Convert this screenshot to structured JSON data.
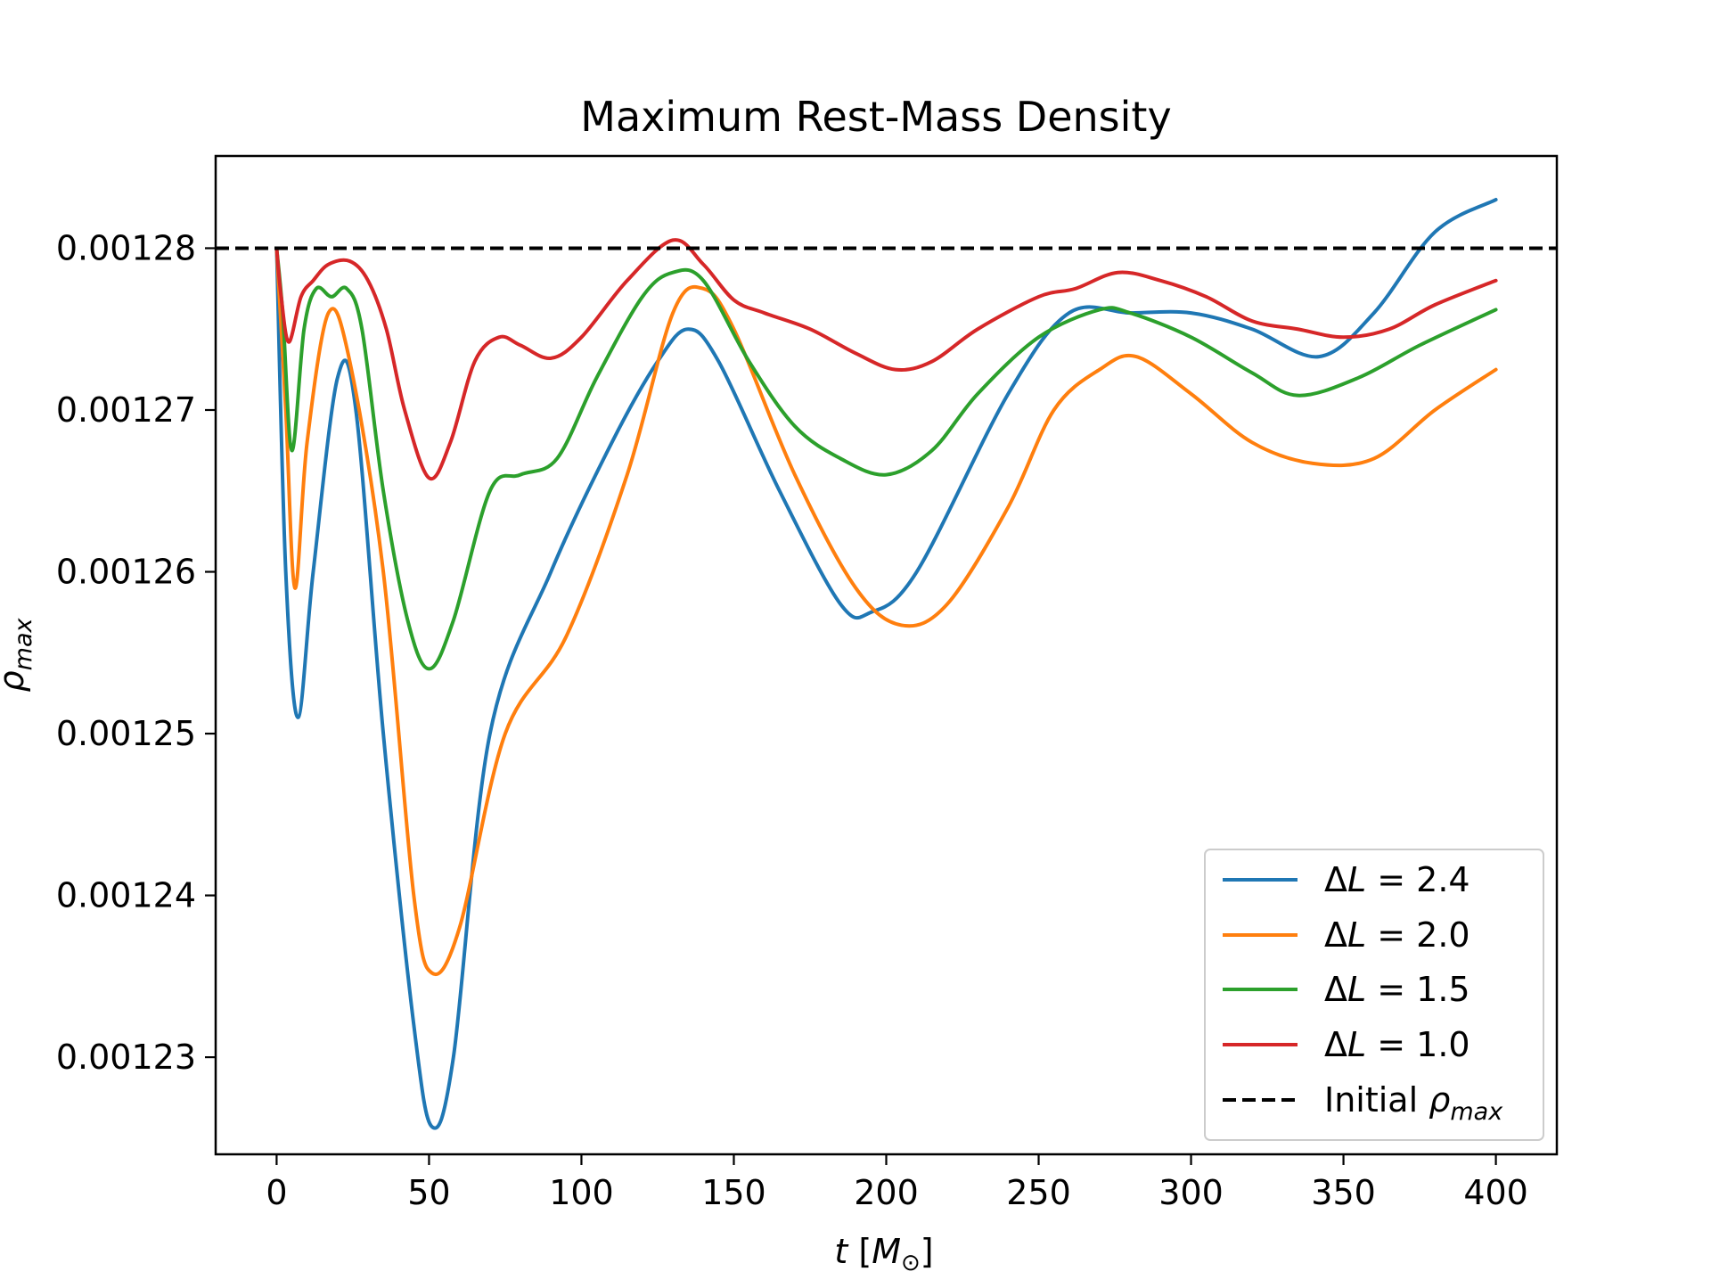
{
  "chart_data": {
    "type": "line",
    "title": "Maximum Rest-Mass Density",
    "xlabel": {
      "prefix": "t",
      "unit": "M",
      "unit_sub": "⊙"
    },
    "ylabel": {
      "base": "ρ",
      "sub": "max"
    },
    "xlim": [
      -20,
      420
    ],
    "ylim": [
      0.001224,
      0.0012857
    ],
    "xticks": [
      0,
      50,
      100,
      150,
      200,
      250,
      300,
      350,
      400
    ],
    "xtick_labels": [
      "0",
      "50",
      "100",
      "150",
      "200",
      "250",
      "300",
      "350",
      "400"
    ],
    "yticks": [
      0.00123,
      0.00124,
      0.00125,
      0.00126,
      0.00127,
      0.00128
    ],
    "ytick_labels": [
      "0.00123",
      "0.00124",
      "0.00125",
      "0.00126",
      "0.00127",
      "0.00128"
    ],
    "grid": false,
    "legend_position": "lower-right",
    "series": [
      {
        "name": "ΔL = 2.4",
        "name_parts": {
          "delta": "Δ",
          "var": "L",
          "rest": " = 2.4"
        },
        "color": "#1f77b4",
        "x": [
          0,
          3,
          7,
          12,
          20,
          26,
          35,
          45,
          51,
          58,
          70,
          90,
          110,
          125,
          135,
          145,
          165,
          185,
          195,
          210,
          240,
          260,
          280,
          300,
          320,
          342,
          360,
          380,
          400
        ],
        "y": [
          0.00128,
          0.00126,
          0.001251,
          0.00126,
          0.001272,
          0.00127,
          0.00125,
          0.001232,
          0.0012257,
          0.00123,
          0.00125,
          0.00126,
          0.001268,
          0.001273,
          0.001275,
          0.001273,
          0.001265,
          0.001258,
          0.0012575,
          0.00126,
          0.001271,
          0.001276,
          0.001276,
          0.001276,
          0.001275,
          0.0012733,
          0.001276,
          0.001281,
          0.001283
        ]
      },
      {
        "name": "ΔL = 2.0",
        "name_parts": {
          "delta": "Δ",
          "var": "L",
          "rest": " = 2.0"
        },
        "color": "#ff7f0e",
        "x": [
          0,
          3,
          6,
          10,
          17,
          24,
          35,
          45,
          51,
          60,
          75,
          95,
          115,
          130,
          140,
          150,
          170,
          190,
          205,
          220,
          240,
          255,
          270,
          282,
          300,
          320,
          340,
          360,
          380,
          400
        ],
        "y": [
          0.00128,
          0.00127,
          0.001259,
          0.001268,
          0.001276,
          0.001273,
          0.00126,
          0.00124,
          0.0012352,
          0.001238,
          0.00125,
          0.001256,
          0.001266,
          0.001276,
          0.0012775,
          0.001275,
          0.001266,
          0.001259,
          0.0012567,
          0.001258,
          0.001264,
          0.00127,
          0.0012725,
          0.0012733,
          0.001271,
          0.001268,
          0.0012667,
          0.001267,
          0.00127,
          0.0012725
        ]
      },
      {
        "name": "ΔL = 1.5",
        "name_parts": {
          "delta": "Δ",
          "var": "L",
          "rest": " = 1.5"
        },
        "color": "#2ca02c",
        "x": [
          0,
          2,
          5,
          9,
          13,
          18,
          23,
          28,
          35,
          43,
          50,
          58,
          70,
          80,
          92,
          105,
          120,
          130,
          140,
          155,
          170,
          185,
          200,
          215,
          230,
          250,
          270,
          280,
          300,
          320,
          335,
          355,
          375,
          400
        ],
        "y": [
          0.00128,
          0.001276,
          0.0012675,
          0.001275,
          0.0012775,
          0.001277,
          0.0012775,
          0.001275,
          0.001265,
          0.001257,
          0.001254,
          0.001257,
          0.001265,
          0.001266,
          0.001267,
          0.001272,
          0.001277,
          0.0012785,
          0.001278,
          0.001273,
          0.001269,
          0.001267,
          0.001266,
          0.0012675,
          0.001271,
          0.0012745,
          0.0012762,
          0.001276,
          0.0012745,
          0.0012723,
          0.0012709,
          0.001272,
          0.001274,
          0.0012762
        ]
      },
      {
        "name": "ΔL = 1.0",
        "name_parts": {
          "delta": "Δ",
          "var": "L",
          "rest": " = 1.0"
        },
        "color": "#d62728",
        "x": [
          0,
          1.5,
          4,
          8,
          12,
          17,
          24,
          30,
          36,
          42,
          50,
          57,
          65,
          73,
          80,
          90,
          100,
          115,
          130,
          140,
          150,
          160,
          175,
          190,
          203,
          215,
          230,
          250,
          262,
          276,
          290,
          305,
          320,
          335,
          350,
          365,
          380,
          400
        ],
        "y": [
          0.00128,
          0.001277,
          0.0012742,
          0.001277,
          0.001278,
          0.001279,
          0.0012792,
          0.001278,
          0.001275,
          0.00127,
          0.0012658,
          0.001268,
          0.001273,
          0.0012745,
          0.001274,
          0.0012732,
          0.0012745,
          0.001278,
          0.0012805,
          0.001279,
          0.0012768,
          0.001276,
          0.001275,
          0.0012735,
          0.0012725,
          0.001273,
          0.001275,
          0.001277,
          0.0012775,
          0.0012785,
          0.001278,
          0.001277,
          0.0012755,
          0.001275,
          0.0012745,
          0.001275,
          0.0012765,
          0.001278
        ]
      }
    ],
    "reference_line": {
      "name": "Initial ρmax",
      "name_parts": {
        "prefix": "Initial ",
        "base": "ρ",
        "sub": "max"
      },
      "y": 0.00128,
      "color": "#000000",
      "style": "dashed"
    }
  }
}
